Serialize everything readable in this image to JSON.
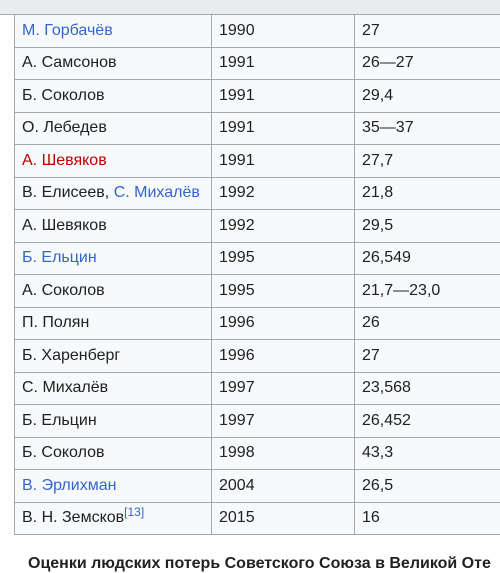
{
  "rows": [
    {
      "author_parts": [
        {
          "text": "М. Горбачёв",
          "kind": "link"
        }
      ],
      "year": "1990",
      "value": "27"
    },
    {
      "author_parts": [
        {
          "text": "А. Самсонов",
          "kind": "plain"
        }
      ],
      "year": "1991",
      "value": "26—27"
    },
    {
      "author_parts": [
        {
          "text": "Б. Соколов",
          "kind": "plain"
        }
      ],
      "year": "1991",
      "value": "29,4"
    },
    {
      "author_parts": [
        {
          "text": "О. Лебедев",
          "kind": "plain"
        }
      ],
      "year": "1991",
      "value": "35—37"
    },
    {
      "author_parts": [
        {
          "text": "А. Шевяков",
          "kind": "new"
        }
      ],
      "year": "1991",
      "value": "27,7"
    },
    {
      "author_parts": [
        {
          "text": "В. Елисеев, ",
          "kind": "plain"
        },
        {
          "text": "С. Михалёв",
          "kind": "link"
        }
      ],
      "year": "1992",
      "value": "21,8"
    },
    {
      "author_parts": [
        {
          "text": "А. Шевяков",
          "kind": "plain"
        }
      ],
      "year": "1992",
      "value": "29,5"
    },
    {
      "author_parts": [
        {
          "text": "Б. Ельцин",
          "kind": "link"
        }
      ],
      "year": "1995",
      "value": "26,549"
    },
    {
      "author_parts": [
        {
          "text": "А. Соколов",
          "kind": "plain"
        }
      ],
      "year": "1995",
      "value": "21,7—23,0"
    },
    {
      "author_parts": [
        {
          "text": "П. Полян",
          "kind": "plain"
        }
      ],
      "year": "1996",
      "value": "26"
    },
    {
      "author_parts": [
        {
          "text": "Б. Харенберг",
          "kind": "plain"
        }
      ],
      "year": "1996",
      "value": "27"
    },
    {
      "author_parts": [
        {
          "text": "С. Михалёв",
          "kind": "plain"
        }
      ],
      "year": "1997",
      "value": "23,568"
    },
    {
      "author_parts": [
        {
          "text": "Б. Ельцин",
          "kind": "plain"
        }
      ],
      "year": "1997",
      "value": "26,452"
    },
    {
      "author_parts": [
        {
          "text": "Б. Соколов",
          "kind": "plain"
        }
      ],
      "year": "1998",
      "value": "43,3"
    },
    {
      "author_parts": [
        {
          "text": "В. Эрлихман",
          "kind": "link"
        }
      ],
      "year": "2004",
      "value": "26,5"
    },
    {
      "author_parts": [
        {
          "text": "В. Н. Земсков",
          "kind": "plain"
        },
        {
          "text": "[13]",
          "kind": "ref"
        }
      ],
      "year": "2015",
      "value": "16"
    }
  ],
  "caption": "Оценки людских потерь Советского Союза в Великой Оте"
}
